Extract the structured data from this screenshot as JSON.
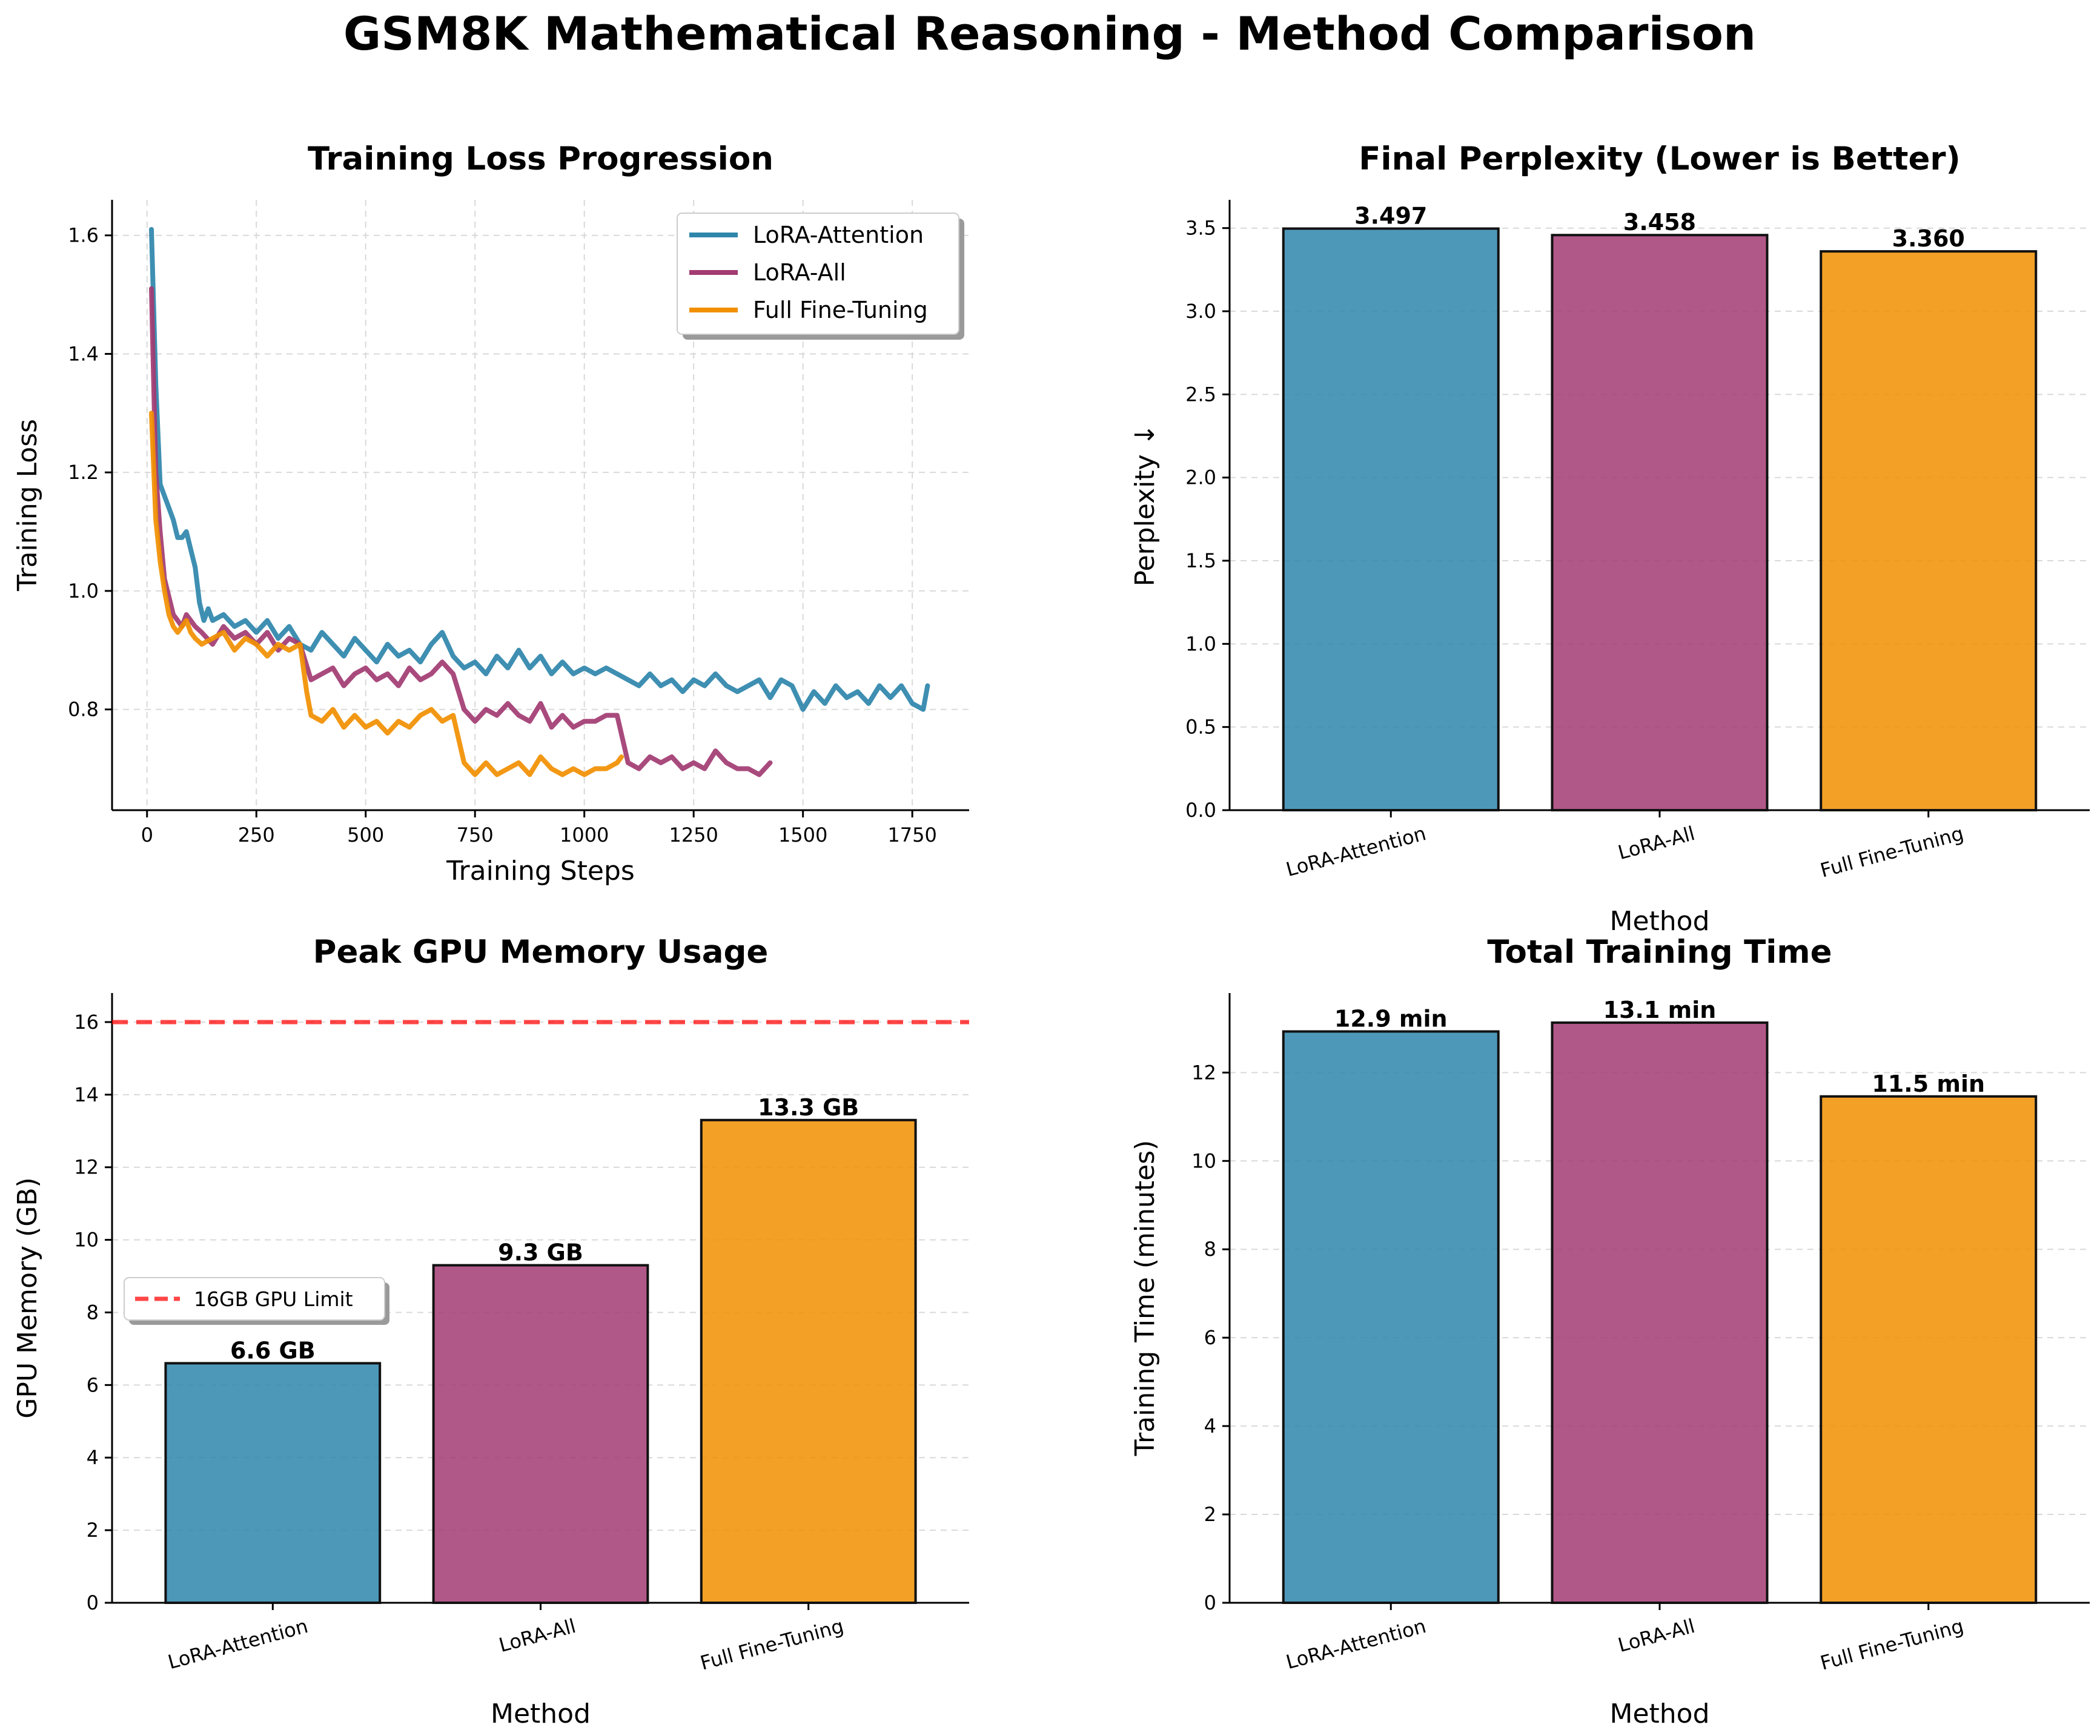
{
  "figure_title": "GSM8K Mathematical Reasoning - Method Comparison",
  "colors": {
    "lora_attention": "#2E86AB",
    "lora_all": "#A23B72",
    "full_ft": "#F18F01",
    "gpu_limit": "#FF0000"
  },
  "chart_data": [
    {
      "type": "line",
      "title": "Training Loss Progression",
      "xlabel": "Training Steps",
      "ylabel": "Training Loss",
      "xlim": [
        -80,
        1880
      ],
      "ylim": [
        0.63,
        1.66
      ],
      "xticks": [
        0,
        250,
        500,
        750,
        1000,
        1250,
        1500,
        1750
      ],
      "yticks": [
        0.8,
        1.0,
        1.2,
        1.4,
        1.6
      ],
      "legend_position": "upper right",
      "grid": true,
      "series": [
        {
          "name": "LoRA-Attention",
          "color_key": "lora_attention",
          "x": [
            10,
            20,
            30,
            40,
            50,
            60,
            70,
            80,
            90,
            100,
            110,
            120,
            130,
            140,
            150,
            175,
            200,
            225,
            250,
            275,
            300,
            325,
            350,
            375,
            400,
            425,
            450,
            475,
            500,
            525,
            550,
            575,
            600,
            625,
            650,
            675,
            700,
            725,
            750,
            775,
            800,
            825,
            850,
            875,
            900,
            925,
            950,
            975,
            1000,
            1025,
            1050,
            1075,
            1100,
            1125,
            1150,
            1175,
            1200,
            1225,
            1250,
            1275,
            1300,
            1325,
            1350,
            1375,
            1400,
            1425,
            1450,
            1475,
            1500,
            1525,
            1550,
            1575,
            1600,
            1625,
            1650,
            1675,
            1700,
            1725,
            1750,
            1775,
            1785
          ],
          "y": [
            1.61,
            1.35,
            1.18,
            1.16,
            1.14,
            1.12,
            1.09,
            1.09,
            1.1,
            1.07,
            1.04,
            0.98,
            0.95,
            0.97,
            0.95,
            0.96,
            0.94,
            0.95,
            0.93,
            0.95,
            0.92,
            0.94,
            0.91,
            0.9,
            0.93,
            0.91,
            0.89,
            0.92,
            0.9,
            0.88,
            0.91,
            0.89,
            0.9,
            0.88,
            0.91,
            0.93,
            0.89,
            0.87,
            0.88,
            0.86,
            0.89,
            0.87,
            0.9,
            0.87,
            0.89,
            0.86,
            0.88,
            0.86,
            0.87,
            0.86,
            0.87,
            0.86,
            0.85,
            0.84,
            0.86,
            0.84,
            0.85,
            0.83,
            0.85,
            0.84,
            0.86,
            0.84,
            0.83,
            0.84,
            0.85,
            0.82,
            0.85,
            0.84,
            0.8,
            0.83,
            0.81,
            0.84,
            0.82,
            0.83,
            0.81,
            0.84,
            0.82,
            0.84,
            0.81,
            0.8,
            0.84
          ]
        },
        {
          "name": "LoRA-All",
          "color_key": "lora_all",
          "x": [
            10,
            20,
            30,
            40,
            50,
            60,
            70,
            80,
            90,
            100,
            110,
            125,
            150,
            175,
            200,
            225,
            250,
            275,
            300,
            325,
            350,
            375,
            400,
            425,
            450,
            475,
            500,
            525,
            550,
            575,
            600,
            625,
            650,
            675,
            700,
            725,
            750,
            775,
            800,
            825,
            850,
            875,
            900,
            925,
            950,
            975,
            1000,
            1025,
            1050,
            1075,
            1100,
            1125,
            1150,
            1175,
            1200,
            1225,
            1250,
            1275,
            1300,
            1325,
            1350,
            1375,
            1400,
            1425
          ],
          "y": [
            1.51,
            1.2,
            1.1,
            1.02,
            0.99,
            0.96,
            0.95,
            0.94,
            0.96,
            0.95,
            0.94,
            0.93,
            0.91,
            0.94,
            0.92,
            0.93,
            0.91,
            0.93,
            0.9,
            0.92,
            0.91,
            0.85,
            0.86,
            0.87,
            0.84,
            0.86,
            0.87,
            0.85,
            0.86,
            0.84,
            0.87,
            0.85,
            0.86,
            0.88,
            0.86,
            0.8,
            0.78,
            0.8,
            0.79,
            0.81,
            0.79,
            0.78,
            0.81,
            0.77,
            0.79,
            0.77,
            0.78,
            0.78,
            0.79,
            0.79,
            0.71,
            0.7,
            0.72,
            0.71,
            0.72,
            0.7,
            0.71,
            0.7,
            0.73,
            0.71,
            0.7,
            0.7,
            0.69,
            0.71
          ]
        },
        {
          "name": "Full Fine-Tuning",
          "color_key": "full_ft",
          "x": [
            10,
            20,
            30,
            40,
            50,
            60,
            70,
            80,
            90,
            100,
            110,
            125,
            150,
            175,
            200,
            225,
            250,
            275,
            300,
            325,
            350,
            365,
            375,
            400,
            425,
            450,
            475,
            500,
            525,
            550,
            575,
            600,
            625,
            650,
            675,
            700,
            725,
            750,
            775,
            800,
            825,
            850,
            875,
            900,
            925,
            950,
            975,
            1000,
            1025,
            1050,
            1075,
            1085
          ],
          "y": [
            1.3,
            1.12,
            1.05,
            1.0,
            0.96,
            0.94,
            0.93,
            0.94,
            0.95,
            0.93,
            0.92,
            0.91,
            0.92,
            0.93,
            0.9,
            0.92,
            0.91,
            0.89,
            0.91,
            0.9,
            0.91,
            0.83,
            0.79,
            0.78,
            0.8,
            0.77,
            0.79,
            0.77,
            0.78,
            0.76,
            0.78,
            0.77,
            0.79,
            0.8,
            0.78,
            0.79,
            0.71,
            0.69,
            0.71,
            0.69,
            0.7,
            0.71,
            0.69,
            0.72,
            0.7,
            0.69,
            0.7,
            0.69,
            0.7,
            0.7,
            0.71,
            0.72
          ]
        }
      ]
    },
    {
      "type": "bar",
      "title": "Final Perplexity (Lower is Better)",
      "xlabel": "Method",
      "ylabel": "Perplexity ↓",
      "categories": [
        "LoRA-Attention",
        "LoRA-All",
        "Full Fine-Tuning"
      ],
      "values": [
        3.497,
        3.458,
        3.36
      ],
      "value_labels": [
        "3.497",
        "3.458",
        "3.360"
      ],
      "ylim": [
        0,
        3.67
      ],
      "yticks": [
        0.0,
        0.5,
        1.0,
        1.5,
        2.0,
        2.5,
        3.0,
        3.5
      ],
      "ytick_labels": [
        "0.0",
        "0.5",
        "1.0",
        "1.5",
        "2.0",
        "2.5",
        "3.0",
        "3.5"
      ],
      "grid": true
    },
    {
      "type": "bar",
      "title": "Peak GPU Memory Usage",
      "xlabel": "Method",
      "ylabel": "GPU Memory (GB)",
      "categories": [
        "LoRA-Attention",
        "LoRA-All",
        "Full Fine-Tuning"
      ],
      "values": [
        6.6,
        9.3,
        13.3
      ],
      "value_labels": [
        "6.6 GB",
        "9.3 GB",
        "13.3 GB"
      ],
      "ylim": [
        0,
        16.8
      ],
      "yticks": [
        0,
        2,
        4,
        6,
        8,
        10,
        12,
        14,
        16
      ],
      "ytick_labels": [
        "0",
        "2",
        "4",
        "6",
        "8",
        "10",
        "12",
        "14",
        "16"
      ],
      "reference_line": {
        "value": 16,
        "label": "16GB GPU Limit"
      },
      "legend_position": "center left",
      "grid": true
    },
    {
      "type": "bar",
      "title": "Total Training Time",
      "xlabel": "Method",
      "ylabel": "Training Time (minutes)",
      "categories": [
        "LoRA-Attention",
        "LoRA-All",
        "Full Fine-Tuning"
      ],
      "values": [
        12.93,
        13.13,
        11.46
      ],
      "value_labels": [
        "12.9 min",
        "13.1 min",
        "11.5 min"
      ],
      "ylim": [
        0,
        13.8
      ],
      "yticks": [
        0,
        2,
        4,
        6,
        8,
        10,
        12
      ],
      "ytick_labels": [
        "0",
        "2",
        "4",
        "6",
        "8",
        "10",
        "12"
      ],
      "grid": true
    }
  ]
}
